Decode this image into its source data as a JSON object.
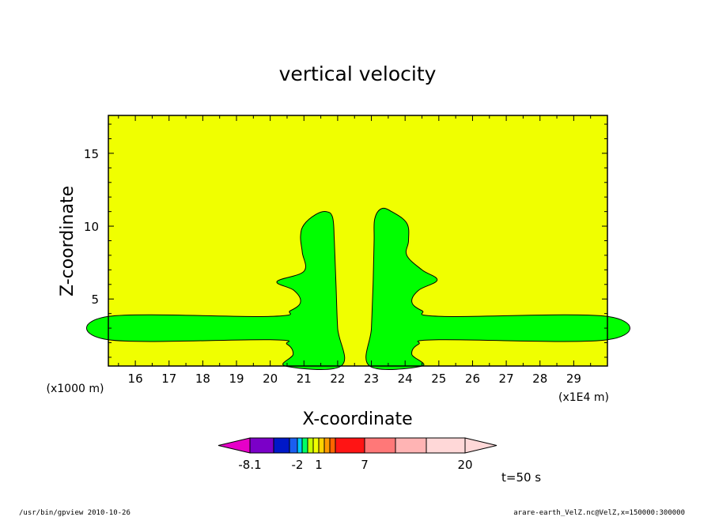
{
  "chart_data": {
    "type": "contour",
    "title": "vertical velocity",
    "xlabel": "X-coordinate",
    "ylabel": "Z-coordinate",
    "x_unit": "(x1E4 m)",
    "y_unit": "(x1000 m)",
    "xlim": [
      15.2,
      30.0
    ],
    "ylim": [
      0.4,
      17.6
    ],
    "x_ticks": [
      "16",
      "17",
      "18",
      "19",
      "20",
      "21",
      "22",
      "23",
      "24",
      "25",
      "26",
      "27",
      "28",
      "29"
    ],
    "y_ticks": [
      "5",
      "10",
      "15"
    ],
    "x_tick_values": [
      16,
      17,
      18,
      19,
      20,
      21,
      22,
      23,
      24,
      25,
      26,
      27,
      28,
      29
    ],
    "y_tick_values": [
      5,
      10,
      15
    ],
    "x_minor_step": 0.5,
    "y_minor_step": 1,
    "background_level_color": "#f0ff00",
    "region_level_color": "#00ff00",
    "regions": [
      {
        "name": "left plume",
        "points": [
          [
            20.45,
            0.4
          ],
          [
            20.68,
            1.2
          ],
          [
            20.5,
            1.9
          ],
          [
            20.0,
            2.2
          ],
          [
            15.2,
            2.2
          ],
          [
            15.2,
            3.8
          ],
          [
            20.0,
            3.8
          ],
          [
            20.6,
            4.2
          ],
          [
            20.9,
            4.8
          ],
          [
            20.7,
            5.6
          ],
          [
            20.2,
            6.2
          ],
          [
            21.0,
            6.9
          ],
          [
            20.95,
            8.2
          ],
          [
            20.9,
            9.3
          ],
          [
            21.0,
            10.1
          ],
          [
            21.35,
            10.8
          ],
          [
            21.65,
            11.0
          ],
          [
            21.85,
            10.6
          ],
          [
            21.9,
            9.0
          ],
          [
            21.95,
            6.0
          ],
          [
            22.0,
            3.0
          ],
          [
            22.1,
            0.4
          ]
        ]
      },
      {
        "name": "right plume",
        "points": [
          [
            22.95,
            0.4
          ],
          [
            23.0,
            3.0
          ],
          [
            23.05,
            6.0
          ],
          [
            23.08,
            9.0
          ],
          [
            23.1,
            10.5
          ],
          [
            23.3,
            11.2
          ],
          [
            23.6,
            11.0
          ],
          [
            24.05,
            10.2
          ],
          [
            24.1,
            9.0
          ],
          [
            24.05,
            8.0
          ],
          [
            24.5,
            7.0
          ],
          [
            24.95,
            6.3
          ],
          [
            24.4,
            5.6
          ],
          [
            24.2,
            4.8
          ],
          [
            24.5,
            4.2
          ],
          [
            25.1,
            3.8
          ],
          [
            30.0,
            3.8
          ],
          [
            30.0,
            2.2
          ],
          [
            25.0,
            2.2
          ],
          [
            24.4,
            1.9
          ],
          [
            24.2,
            1.2
          ],
          [
            24.5,
            0.4
          ]
        ]
      }
    ],
    "colorbar": {
      "levels": [
        -8.1,
        -2,
        1,
        7,
        20
      ],
      "labels": [
        "-8.1",
        "-2",
        "1",
        "7",
        "20"
      ],
      "colors": [
        "#e600c8",
        "#7b00c8",
        "#0018c8",
        "#1a5ff0",
        "#00c8ff",
        "#00ff64",
        "#c8ff00",
        "#f0ff00",
        "#ffd200",
        "#ff9a00",
        "#ff6400",
        "#ff1414",
        "#ff7878",
        "#ffb4b4",
        "#ffd8d8"
      ]
    },
    "time_label": "t=50 s",
    "footer_left": "/usr/bin/gpview   2010-10-26",
    "footer_right": "arare-earth_VelZ.nc@VelZ,x=150000:300000"
  }
}
